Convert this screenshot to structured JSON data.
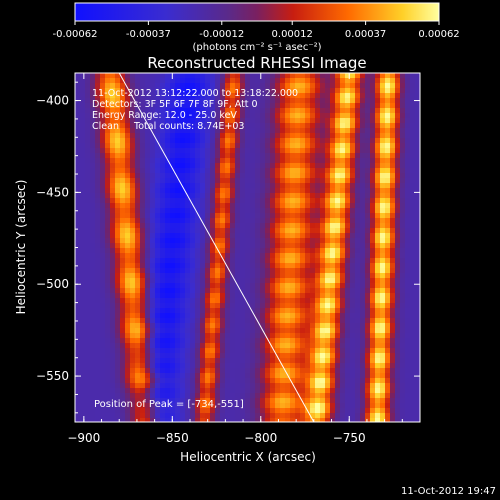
{
  "chart_data": {
    "type": "heatmap",
    "title": "Reconstructed RHESSI Image",
    "xlabel": "Heliocentric X (arcsec)",
    "ylabel": "Heliocentric Y (arcsec)",
    "xlim": [
      -905,
      -710
    ],
    "ylim": [
      -575,
      -385
    ],
    "x_ticks": [
      -900,
      -850,
      -800,
      -750
    ],
    "y_ticks": [
      -550,
      -500,
      -450,
      -400
    ],
    "colorbar": {
      "range": [
        -0.00062,
        0.00062
      ],
      "tick_values": [
        -0.00062,
        -0.00037,
        -0.00012,
        0.00012,
        0.00037,
        0.00062
      ],
      "tick_labels": [
        "-0.00062",
        "-0.00037",
        "-0.00012",
        "0.00012",
        "0.00037",
        "0.00062"
      ],
      "unit_label": "(photons cm⁻² s⁻¹ asec⁻²)"
    },
    "annotations": [
      "11-Oct-2012 13:12:22.000 to 13:18:22.000",
      "Detectors: 3F 5F 6F 7F 8F 9F, Att 0",
      "Energy Range: 12.0 - 25.0 keV",
      "Clean     Total counts: 8.74E+03"
    ],
    "peak_label": "Position of Peak = [-734,-551]",
    "peak": {
      "x": -734,
      "y": -551
    },
    "limb_line": [
      {
        "x": -880,
        "y": -385
      },
      {
        "x": -770,
        "y": -575
      }
    ],
    "bands": [
      {
        "x_center_at_top": -885,
        "x_center_at_bottom": -865,
        "half_width": 9,
        "value": 0.0005
      },
      {
        "x_center_at_top": -840,
        "x_center_at_bottom": -860,
        "half_width": 12,
        "value": -0.00062
      },
      {
        "x_center_at_top": -815,
        "x_center_at_bottom": -832,
        "half_width": 6,
        "value": 0.00035
      },
      {
        "x_center_at_top": -778,
        "x_center_at_bottom": -788,
        "half_width": 13,
        "value": 0.00045
      },
      {
        "x_center_at_top": -750,
        "x_center_at_bottom": -768,
        "half_width": 8,
        "value": 0.0006
      },
      {
        "x_center_at_top": -728,
        "x_center_at_bottom": -734,
        "half_width": 7,
        "value": 0.00062
      }
    ]
  },
  "footer": {
    "date": "11-Oct-2012 19:47"
  }
}
